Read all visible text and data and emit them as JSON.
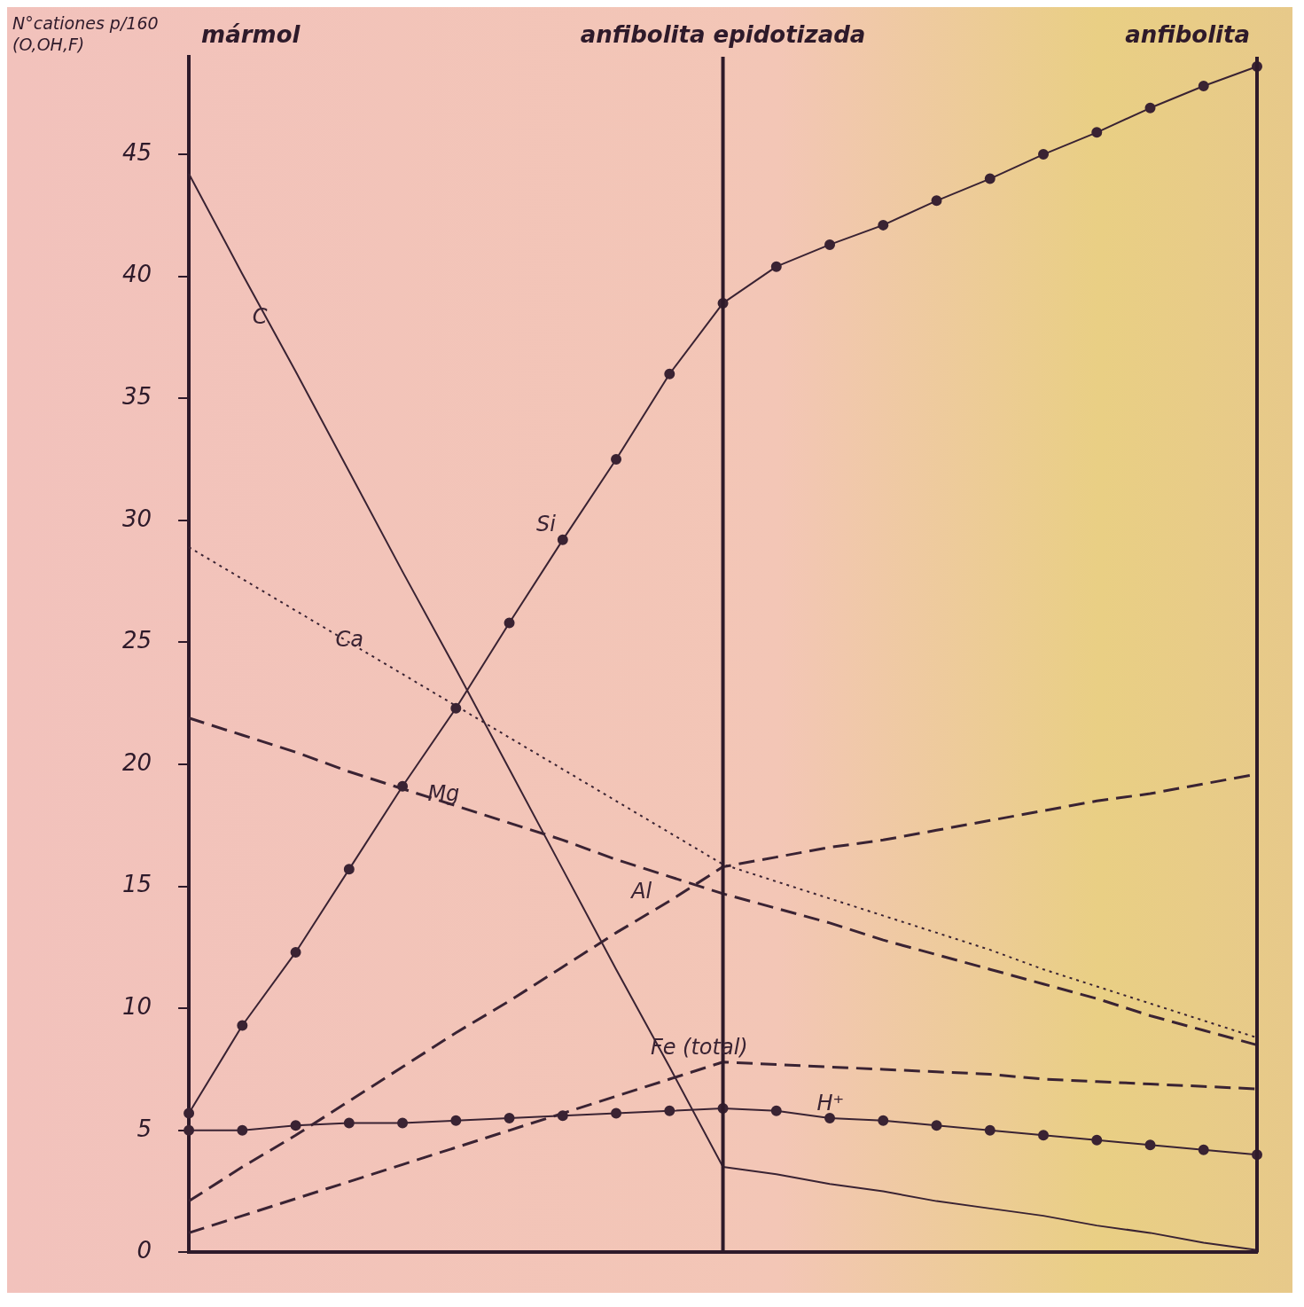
{
  "chart_data": {
    "type": "line",
    "ylabel": "N°cationes p/160 (O,OH,F)",
    "annotations": [
      "mármol",
      "anfibolita epidotizada",
      "anfibolita"
    ],
    "categories": [
      null,
      null,
      null,
      null,
      null,
      null,
      null,
      null,
      null,
      null,
      null,
      null,
      null,
      null,
      null,
      null,
      null,
      null,
      null,
      null,
      null
    ],
    "ylim": [
      0,
      49
    ],
    "yticks": [
      0,
      5,
      10,
      15,
      20,
      25,
      30,
      35,
      40,
      45
    ],
    "tick_labels": "y",
    "grid": false,
    "legend": false,
    "series": [
      {
        "name": "C",
        "color": "#3a2333",
        "line_style": "solid",
        "marker": "none",
        "values": [
          44.2,
          40.1,
          36.1,
          32.0,
          27.9,
          23.9,
          19.8,
          15.7,
          11.6,
          7.6,
          3.5,
          3.2,
          2.8,
          2.5,
          2.1,
          1.8,
          1.5,
          1.1,
          0.8,
          0.4,
          0.1
        ]
      },
      {
        "name": "Ca",
        "color": "#3a2333",
        "line_style": "dotted",
        "marker": "none",
        "values": [
          28.9,
          27.6,
          26.3,
          25.0,
          23.7,
          22.4,
          21.1,
          19.8,
          18.5,
          17.2,
          15.9,
          15.2,
          14.5,
          13.8,
          13.1,
          12.4,
          11.6,
          10.9,
          10.2,
          9.5,
          8.8
        ]
      },
      {
        "name": "Mg",
        "color": "#3a2333",
        "line_style": "dashed",
        "marker": "none",
        "values": [
          21.9,
          21.2,
          20.5,
          19.7,
          19.0,
          18.3,
          17.6,
          16.9,
          16.1,
          15.4,
          14.7,
          14.1,
          13.5,
          12.8,
          12.2,
          11.6,
          11.0,
          10.4,
          9.7,
          9.1,
          8.5
        ]
      },
      {
        "name": "Si",
        "color": "#3a2333",
        "line_style": "solid",
        "marker": "circle",
        "values": [
          5.7,
          9.3,
          12.3,
          15.7,
          19.1,
          22.3,
          25.8,
          29.2,
          32.5,
          36.0,
          38.9,
          40.4,
          41.3,
          42.1,
          43.1,
          44.0,
          45.0,
          45.9,
          46.9,
          47.8,
          48.6
        ]
      },
      {
        "name": "Al",
        "color": "#3a2333",
        "line_style": "dashed",
        "marker": "none",
        "values": [
          2.1,
          3.5,
          4.8,
          6.2,
          7.6,
          9.0,
          10.3,
          11.7,
          13.1,
          14.4,
          15.8,
          16.2,
          16.6,
          16.9,
          17.3,
          17.7,
          18.1,
          18.5,
          18.8,
          19.2,
          19.6
        ]
      },
      {
        "name": "Fe (total)",
        "color": "#3a2333",
        "line_style": "dashed",
        "marker": "none",
        "values": [
          0.8,
          1.5,
          2.2,
          2.9,
          3.6,
          4.3,
          5.0,
          5.7,
          6.4,
          7.1,
          7.8,
          7.7,
          7.6,
          7.5,
          7.4,
          7.3,
          7.1,
          7.0,
          6.9,
          6.8,
          6.7
        ]
      },
      {
        "name": "H⁺",
        "color": "#3a2333",
        "line_style": "solid",
        "marker": "circle",
        "values": [
          5.0,
          5.0,
          5.2,
          5.3,
          5.3,
          5.4,
          5.5,
          5.6,
          5.7,
          5.8,
          5.9,
          5.8,
          5.5,
          5.4,
          5.2,
          5.0,
          4.8,
          4.6,
          4.4,
          4.2,
          4.0
        ]
      }
    ]
  }
}
